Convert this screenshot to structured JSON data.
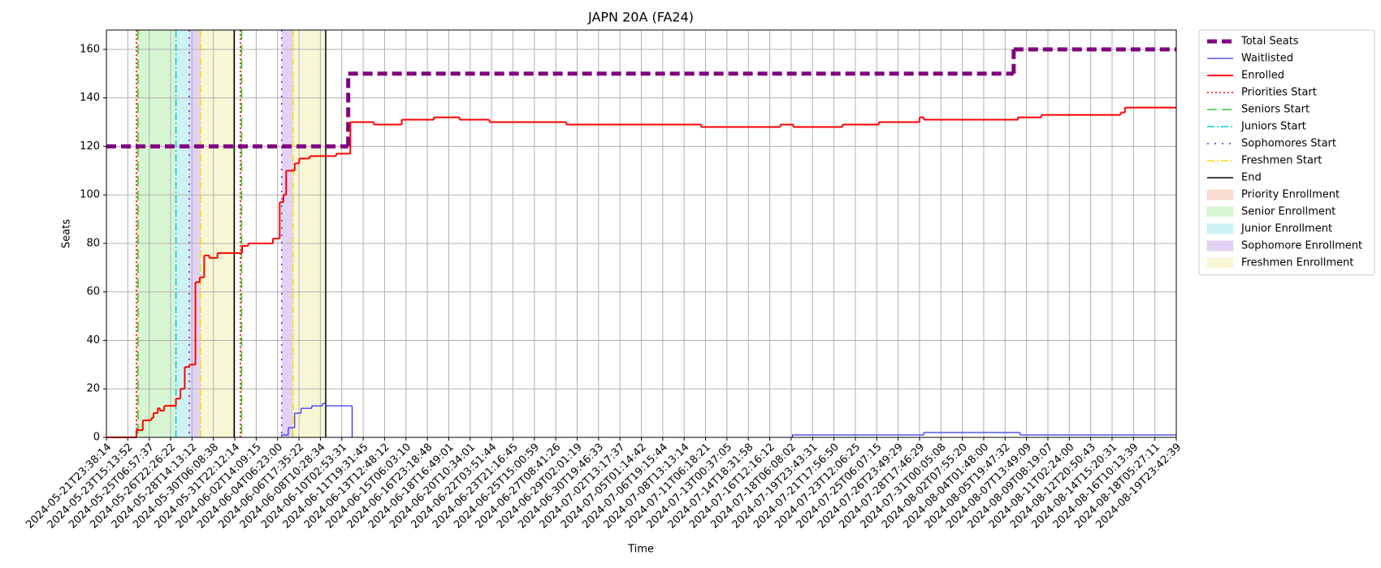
{
  "chart_data": {
    "type": "step",
    "step": "post",
    "title": "JAPN 20A (FA24)",
    "x_label": "Time",
    "y_label": "Seats",
    "xlim": [
      0,
      50
    ],
    "ylim": [
      0,
      168
    ],
    "yticks": [
      0,
      20,
      40,
      60,
      80,
      100,
      120,
      140,
      160
    ],
    "xticks": [
      {
        "value": 0,
        "label": "2024-05-21T23:38:14"
      },
      {
        "value": 1,
        "label": "2024-05-23T15:13:52"
      },
      {
        "value": 2,
        "label": "2024-05-25T06:57:37"
      },
      {
        "value": 3,
        "label": "2024-05-26T22:26:22"
      },
      {
        "value": 4,
        "label": "2024-05-28T14:13:12"
      },
      {
        "value": 5,
        "label": "2024-05-30T06:08:38"
      },
      {
        "value": 6,
        "label": "2024-05-31T22:12:14"
      },
      {
        "value": 7,
        "label": "2024-06-02T14:09:15"
      },
      {
        "value": 8,
        "label": "2024-06-04T06:23:00"
      },
      {
        "value": 9,
        "label": "2024-06-06T17:35:22"
      },
      {
        "value": 10,
        "label": "2024-06-08T10:28:34"
      },
      {
        "value": 11,
        "label": "2024-06-10T02:53:31"
      },
      {
        "value": 12,
        "label": "2024-06-11T19:31:45"
      },
      {
        "value": 13,
        "label": "2024-06-13T12:48:12"
      },
      {
        "value": 14,
        "label": "2024-06-15T06:03:10"
      },
      {
        "value": 15,
        "label": "2024-06-16T23:18:48"
      },
      {
        "value": 16,
        "label": "2024-06-18T16:49:01"
      },
      {
        "value": 17,
        "label": "2024-06-20T10:34:01"
      },
      {
        "value": 18,
        "label": "2024-06-22T03:51:44"
      },
      {
        "value": 19,
        "label": "2024-06-23T21:16:45"
      },
      {
        "value": 20,
        "label": "2024-06-25T15:00:59"
      },
      {
        "value": 21,
        "label": "2024-06-27T08:41:26"
      },
      {
        "value": 22,
        "label": "2024-06-29T02:01:19"
      },
      {
        "value": 23,
        "label": "2024-06-30T19:46:33"
      },
      {
        "value": 24,
        "label": "2024-07-02T13:17:37"
      },
      {
        "value": 25,
        "label": "2024-07-05T01:14:42"
      },
      {
        "value": 26,
        "label": "2024-07-06T19:15:44"
      },
      {
        "value": 27,
        "label": "2024-07-08T13:13:14"
      },
      {
        "value": 28,
        "label": "2024-07-11T06:18:21"
      },
      {
        "value": 29,
        "label": "2024-07-13T00:37:05"
      },
      {
        "value": 30,
        "label": "2024-07-14T18:31:58"
      },
      {
        "value": 31,
        "label": "2024-07-16T12:16:12"
      },
      {
        "value": 32,
        "label": "2024-07-18T06:08:02"
      },
      {
        "value": 33,
        "label": "2024-07-19T23:43:31"
      },
      {
        "value": 34,
        "label": "2024-07-21T17:56:50"
      },
      {
        "value": 35,
        "label": "2024-07-23T12:06:25"
      },
      {
        "value": 36,
        "label": "2024-07-25T06:07:15"
      },
      {
        "value": 37,
        "label": "2024-07-26T23:49:29"
      },
      {
        "value": 38,
        "label": "2024-07-28T17:46:29"
      },
      {
        "value": 39,
        "label": "2024-07-31T00:05:08"
      },
      {
        "value": 40,
        "label": "2024-08-02T07:55:20"
      },
      {
        "value": 41,
        "label": "2024-08-04T01:48:00"
      },
      {
        "value": 42,
        "label": "2024-08-05T19:47:32"
      },
      {
        "value": 43,
        "label": "2024-08-07T13:49:09"
      },
      {
        "value": 44,
        "label": "2024-08-09T08:19:07"
      },
      {
        "value": 45,
        "label": "2024-08-11T02:24:00"
      },
      {
        "value": 46,
        "label": "2024-08-12T20:50:43"
      },
      {
        "value": 47,
        "label": "2024-08-14T15:20:31"
      },
      {
        "value": 48,
        "label": "2024-08-16T10:13:39"
      },
      {
        "value": 49,
        "label": "2024-08-18T05:27:11"
      },
      {
        "value": 50,
        "label": "2024-08-19T23:42:39"
      }
    ],
    "grid": true,
    "legend": "outside upper right",
    "series": [
      {
        "name": "Total Seats",
        "color": "#800080",
        "width": 5,
        "dash": "dashed",
        "x": [
          0,
          11.3,
          42.4,
          50
        ],
        "values": [
          120,
          150,
          160,
          160
        ]
      },
      {
        "name": "Waitlisted",
        "color": "#0000ff",
        "width": 1,
        "dash": "solid",
        "x": [
          0,
          8.19,
          8.5,
          8.8,
          9.1,
          9.6,
          10.1,
          10.25,
          11.48,
          32.06,
          38.2,
          42.7,
          50
        ],
        "values": [
          0,
          1,
          4,
          10,
          12,
          13,
          14,
          13,
          0,
          1,
          2,
          1,
          1
        ]
      },
      {
        "name": "Enrolled",
        "color": "#ff0000",
        "width": 2,
        "dash": "solid",
        "x": [
          0,
          1.4,
          1.7,
          2.1,
          2.2,
          2.4,
          2.5,
          2.7,
          3.25,
          3.46,
          3.66,
          3.87,
          4.16,
          4.36,
          4.57,
          4.81,
          5.19,
          6.34,
          6.63,
          7.78,
          8.1,
          8.27,
          8.4,
          8.8,
          9.01,
          9.5,
          10.74,
          11.4,
          12.5,
          13.8,
          15.3,
          16.5,
          17.9,
          21.5,
          27.8,
          31.5,
          32.1,
          34.4,
          36.1,
          38.0,
          38.2,
          42.6,
          43.7,
          47.4,
          47.6,
          50
        ],
        "values": [
          0,
          3,
          7,
          8,
          10,
          12,
          11,
          13,
          16,
          20,
          29,
          30,
          64,
          66,
          75,
          74,
          76,
          79,
          80,
          82,
          97,
          100,
          110,
          113,
          115,
          116,
          117,
          130,
          129,
          131,
          132,
          131,
          130,
          129,
          128,
          129,
          128,
          129,
          130,
          132,
          131,
          132,
          133,
          134,
          136,
          136
        ]
      }
    ],
    "vlines": [
      {
        "name": "Priorities Start",
        "color": "#ff0000",
        "dash": "dotted",
        "x": [
          1.4,
          6.26
        ]
      },
      {
        "name": "Seniors Start",
        "color": "#32cd32",
        "dash": "dashed",
        "x": [
          1.48,
          6.32
        ]
      },
      {
        "name": "Juniors Start",
        "color": "#00ced1",
        "dash": "dashdot",
        "x": [
          3.25
        ]
      },
      {
        "name": "Sophomores Start",
        "color": "#6a1bd1",
        "dash": "loosedot",
        "x": [
          3.87,
          8.19
        ]
      },
      {
        "name": "Freshmen Start",
        "color": "#ffd700",
        "dash": "dashdot",
        "x": [
          4.4,
          8.72
        ]
      },
      {
        "name": "End",
        "color": "#000000",
        "dash": "solid",
        "x": [
          5.97,
          10.25
        ]
      }
    ],
    "spans": [
      {
        "name": "Priority Enrollment",
        "color": "#fadbd0",
        "ranges": [
          [
            1.4,
            1.48
          ],
          [
            6.26,
            6.32
          ]
        ]
      },
      {
        "name": "Senior Enrollment",
        "color": "#d8f5d3",
        "ranges": [
          [
            1.48,
            3.25
          ]
        ]
      },
      {
        "name": "Junior Enrollment",
        "color": "#cdf2f5",
        "ranges": [
          [
            3.25,
            3.87
          ]
        ]
      },
      {
        "name": "Sophomore Enrollment",
        "color": "#e1d3f5",
        "ranges": [
          [
            3.87,
            4.4
          ],
          [
            8.19,
            8.72
          ]
        ]
      },
      {
        "name": "Freshmen Enrollment",
        "color": "#f7f7d6",
        "ranges": [
          [
            4.4,
            5.97
          ],
          [
            8.72,
            10.25
          ]
        ]
      }
    ]
  }
}
